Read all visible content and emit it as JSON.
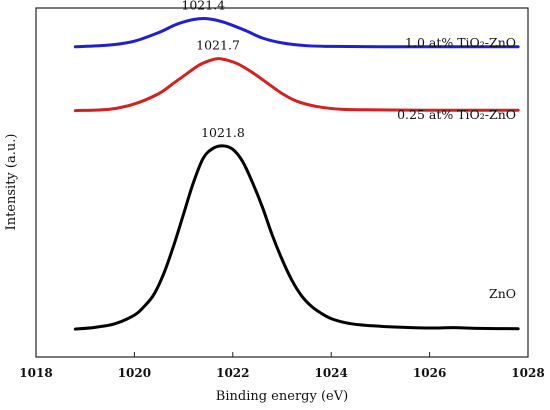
{
  "chart_data": {
    "type": "line",
    "title": "",
    "xlabel": "Binding energy (eV)",
    "ylabel": "Intensity (a.u.)",
    "xlim": [
      1018,
      1028
    ],
    "ylim": [
      0,
      10
    ],
    "xticks": [
      "1018",
      "1020",
      "1022",
      "1024",
      "1026",
      "1028"
    ],
    "grid": false,
    "legend": "none",
    "series": [
      {
        "name": "1.0 at% TiO2-ZnO",
        "label_text": "1.0 at% TiO₂-ZnO",
        "color": "#1f1fd6",
        "peak_label": "1021.4",
        "x": [
          1018.8,
          1019.5,
          1020.0,
          1020.5,
          1020.8,
          1021.0,
          1021.2,
          1021.4,
          1021.6,
          1021.8,
          1022.0,
          1022.3,
          1022.6,
          1023.0,
          1023.5,
          1024.0,
          1025.0,
          1026.0,
          1027.8
        ],
        "y": [
          8.89,
          8.94,
          9.05,
          9.3,
          9.5,
          9.6,
          9.67,
          9.7,
          9.67,
          9.6,
          9.5,
          9.33,
          9.14,
          9.0,
          8.92,
          8.9,
          8.89,
          8.89,
          8.89
        ]
      },
      {
        "name": "0.25 at% TiO2-ZnO",
        "label_text": "0.25 at% TiO₂-ZnO",
        "color": "#d61f1f",
        "peak_label": "1021.7",
        "x": [
          1018.8,
          1019.5,
          1020.0,
          1020.5,
          1020.8,
          1021.0,
          1021.3,
          1021.5,
          1021.7,
          1021.9,
          1022.1,
          1022.4,
          1022.7,
          1023.0,
          1023.3,
          1023.7,
          1024.2,
          1025.0,
          1026.0,
          1027.8
        ],
        "y": [
          7.06,
          7.1,
          7.25,
          7.55,
          7.85,
          8.05,
          8.35,
          8.48,
          8.55,
          8.5,
          8.4,
          8.15,
          7.85,
          7.55,
          7.33,
          7.18,
          7.1,
          7.08,
          7.07,
          7.07
        ]
      },
      {
        "name": "ZnO",
        "label_text": "ZnO",
        "color": "#000000",
        "peak_label": "1021.8",
        "x": [
          1018.8,
          1019.2,
          1019.6,
          1020.0,
          1020.2,
          1020.4,
          1020.6,
          1020.8,
          1021.0,
          1021.2,
          1021.4,
          1021.6,
          1021.8,
          1022.0,
          1022.2,
          1022.4,
          1022.6,
          1022.8,
          1023.0,
          1023.2,
          1023.4,
          1023.6,
          1023.8,
          1024.0,
          1024.3,
          1024.6,
          1025.0,
          1025.5,
          1026.0,
          1026.5,
          1027.0,
          1027.8
        ],
        "y": [
          0.8,
          0.85,
          0.95,
          1.2,
          1.45,
          1.8,
          2.4,
          3.2,
          4.1,
          5.0,
          5.7,
          5.98,
          6.05,
          5.95,
          5.6,
          5.0,
          4.3,
          3.5,
          2.8,
          2.2,
          1.75,
          1.45,
          1.25,
          1.1,
          0.98,
          0.92,
          0.88,
          0.85,
          0.83,
          0.84,
          0.82,
          0.81
        ]
      }
    ]
  }
}
